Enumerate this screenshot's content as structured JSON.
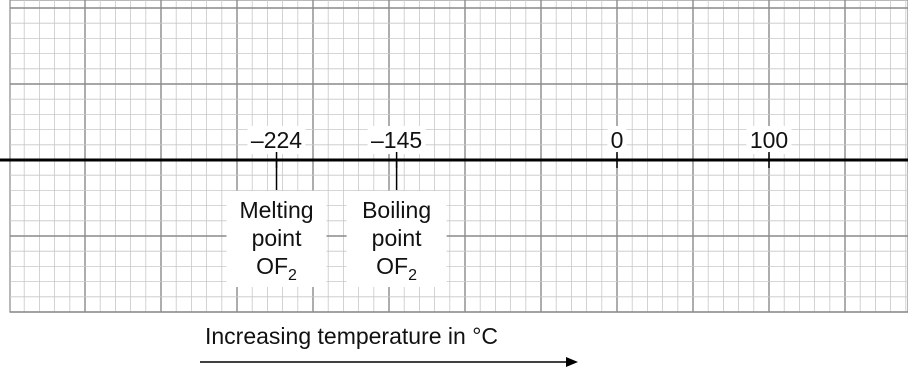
{
  "axis": {
    "ticks": [
      {
        "value": -224,
        "label": "–224"
      },
      {
        "value": -145,
        "label": "–145"
      },
      {
        "value": 0,
        "label": "0"
      },
      {
        "value": 100,
        "label": "100"
      }
    ]
  },
  "markers": [
    {
      "name": "melting-point",
      "value": -224,
      "lines": [
        "Melting",
        "point"
      ],
      "formula_main": "OF",
      "formula_sub": "2"
    },
    {
      "name": "boiling-point",
      "value": -145,
      "lines": [
        "Boiling",
        "point"
      ],
      "formula_main": "OF",
      "formula_sub": "2"
    }
  ],
  "caption": "Increasing temperature in °C",
  "colors": {
    "grid_minor": "#c8c8c8",
    "grid_major": "#8a8a8a",
    "axis": "#000000"
  }
}
